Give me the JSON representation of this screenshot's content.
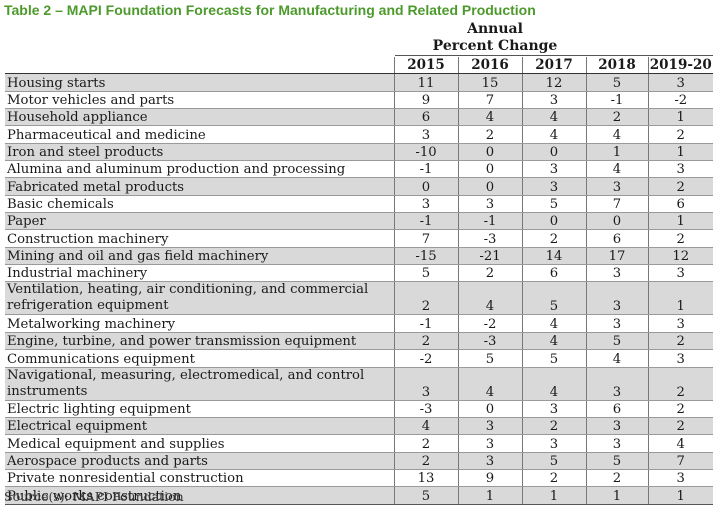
{
  "title": "Table 2 – MAPI Foundation Forecasts for Manufacturing and Related Production",
  "header": {
    "line1": "Annual",
    "line2": "Percent Change",
    "years": [
      "2015",
      "2016",
      "2017",
      "2018",
      "2019-20"
    ]
  },
  "rows": [
    {
      "label": "Housing starts",
      "values": [
        "11",
        "15",
        "12",
        "5",
        "3"
      ]
    },
    {
      "label": "Motor vehicles and parts",
      "values": [
        "9",
        "7",
        "3",
        "-1",
        "-2"
      ]
    },
    {
      "label": "Household appliance",
      "values": [
        "6",
        "4",
        "4",
        "2",
        "1"
      ]
    },
    {
      "label": "Pharmaceutical and medicine",
      "values": [
        "3",
        "2",
        "4",
        "4",
        "2"
      ]
    },
    {
      "label": "Iron and steel products",
      "values": [
        "-10",
        "0",
        "0",
        "1",
        "1"
      ]
    },
    {
      "label": "Alumina and aluminum production and processing",
      "values": [
        "-1",
        "0",
        "3",
        "4",
        "3"
      ]
    },
    {
      "label": "Fabricated metal products",
      "values": [
        "0",
        "0",
        "3",
        "3",
        "2"
      ]
    },
    {
      "label": "Basic chemicals",
      "values": [
        "3",
        "3",
        "5",
        "7",
        "6"
      ]
    },
    {
      "label": "Paper",
      "values": [
        "-1",
        "-1",
        "0",
        "0",
        "1"
      ]
    },
    {
      "label": "Construction machinery",
      "values": [
        "7",
        "-3",
        "2",
        "6",
        "2"
      ]
    },
    {
      "label": "Mining and oil and gas field machinery",
      "values": [
        "-15",
        "-21",
        "14",
        "17",
        "12"
      ]
    },
    {
      "label": "Industrial machinery",
      "values": [
        "5",
        "2",
        "6",
        "3",
        "3"
      ]
    },
    {
      "label": "Ventilation, heating, air conditioning, and commercial refrigeration equipment",
      "values": [
        "2",
        "4",
        "5",
        "3",
        "1"
      ]
    },
    {
      "label": "Metalworking machinery",
      "values": [
        "-1",
        "-2",
        "4",
        "3",
        "3"
      ]
    },
    {
      "label": "Engine, turbine, and power transmission equipment",
      "values": [
        "2",
        "-3",
        "4",
        "5",
        "2"
      ]
    },
    {
      "label": "Communications equipment",
      "values": [
        "-2",
        "5",
        "5",
        "4",
        "3"
      ]
    },
    {
      "label": "Navigational, measuring, electromedical, and control instruments",
      "values": [
        "3",
        "4",
        "4",
        "3",
        "2"
      ]
    },
    {
      "label": "Electric lighting equipment",
      "values": [
        "-3",
        "0",
        "3",
        "6",
        "2"
      ]
    },
    {
      "label": "Electrical equipment",
      "values": [
        "4",
        "3",
        "2",
        "3",
        "2"
      ]
    },
    {
      "label": "Medical equipment and supplies",
      "values": [
        "2",
        "3",
        "3",
        "3",
        "4"
      ]
    },
    {
      "label": "Aerospace products and parts",
      "values": [
        "2",
        "3",
        "5",
        "5",
        "7"
      ]
    },
    {
      "label": "Private nonresidential construction",
      "values": [
        "13",
        "9",
        "2",
        "2",
        "3"
      ]
    },
    {
      "label": "Public works construction",
      "values": [
        "5",
        "1",
        "1",
        "1",
        "1"
      ]
    }
  ],
  "source": "Source(s): MAPI Foundation"
}
